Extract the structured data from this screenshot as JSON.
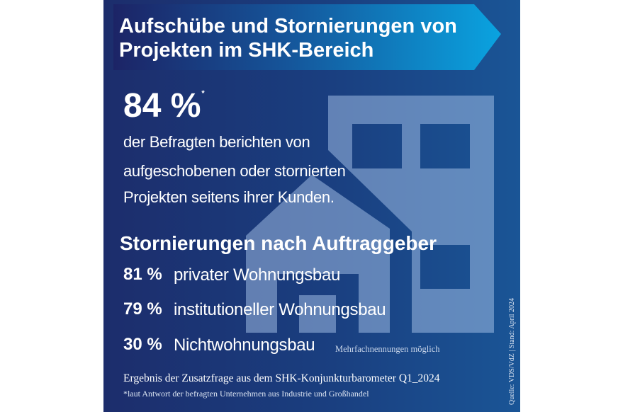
{
  "title": {
    "line1": "Aufschübe und Stornierungen von",
    "line2": "Projekten im SHK-Bereich"
  },
  "headline": {
    "value": "84 %",
    "footnote_mark": "*"
  },
  "description": [
    "der Befragten berichten von",
    "aufgeschobenen oder stornierten",
    "Projekten seitens ihrer Kunden."
  ],
  "section_title": "Stornierungen nach Auftraggeber",
  "items": [
    {
      "percent": "81 %",
      "label": "privater Wohnungsbau"
    },
    {
      "percent": "79 %",
      "label": "institutioneller Wohnungsbau"
    },
    {
      "percent": "30 %",
      "label": "Nichtwohnungsbau"
    }
  ],
  "note": "Mehrfachnennungen möglich",
  "footer": {
    "result": "Ergebnis der Zusatzfrage aus dem SHK-Konjunkturbarometer Q1_2024",
    "footnote": "*laut Antwort der befragten Unternehmen aus Industrie und Großhandel"
  },
  "source": "Quelle: VDS/VdZ | Stand: April 2024",
  "icons": [
    "building-house-icon"
  ],
  "colors": {
    "background_left": "#1c2d6c",
    "background_right": "#1a5596",
    "banner_right": "#0aa3e0",
    "icon_fill": "#6486b3"
  }
}
